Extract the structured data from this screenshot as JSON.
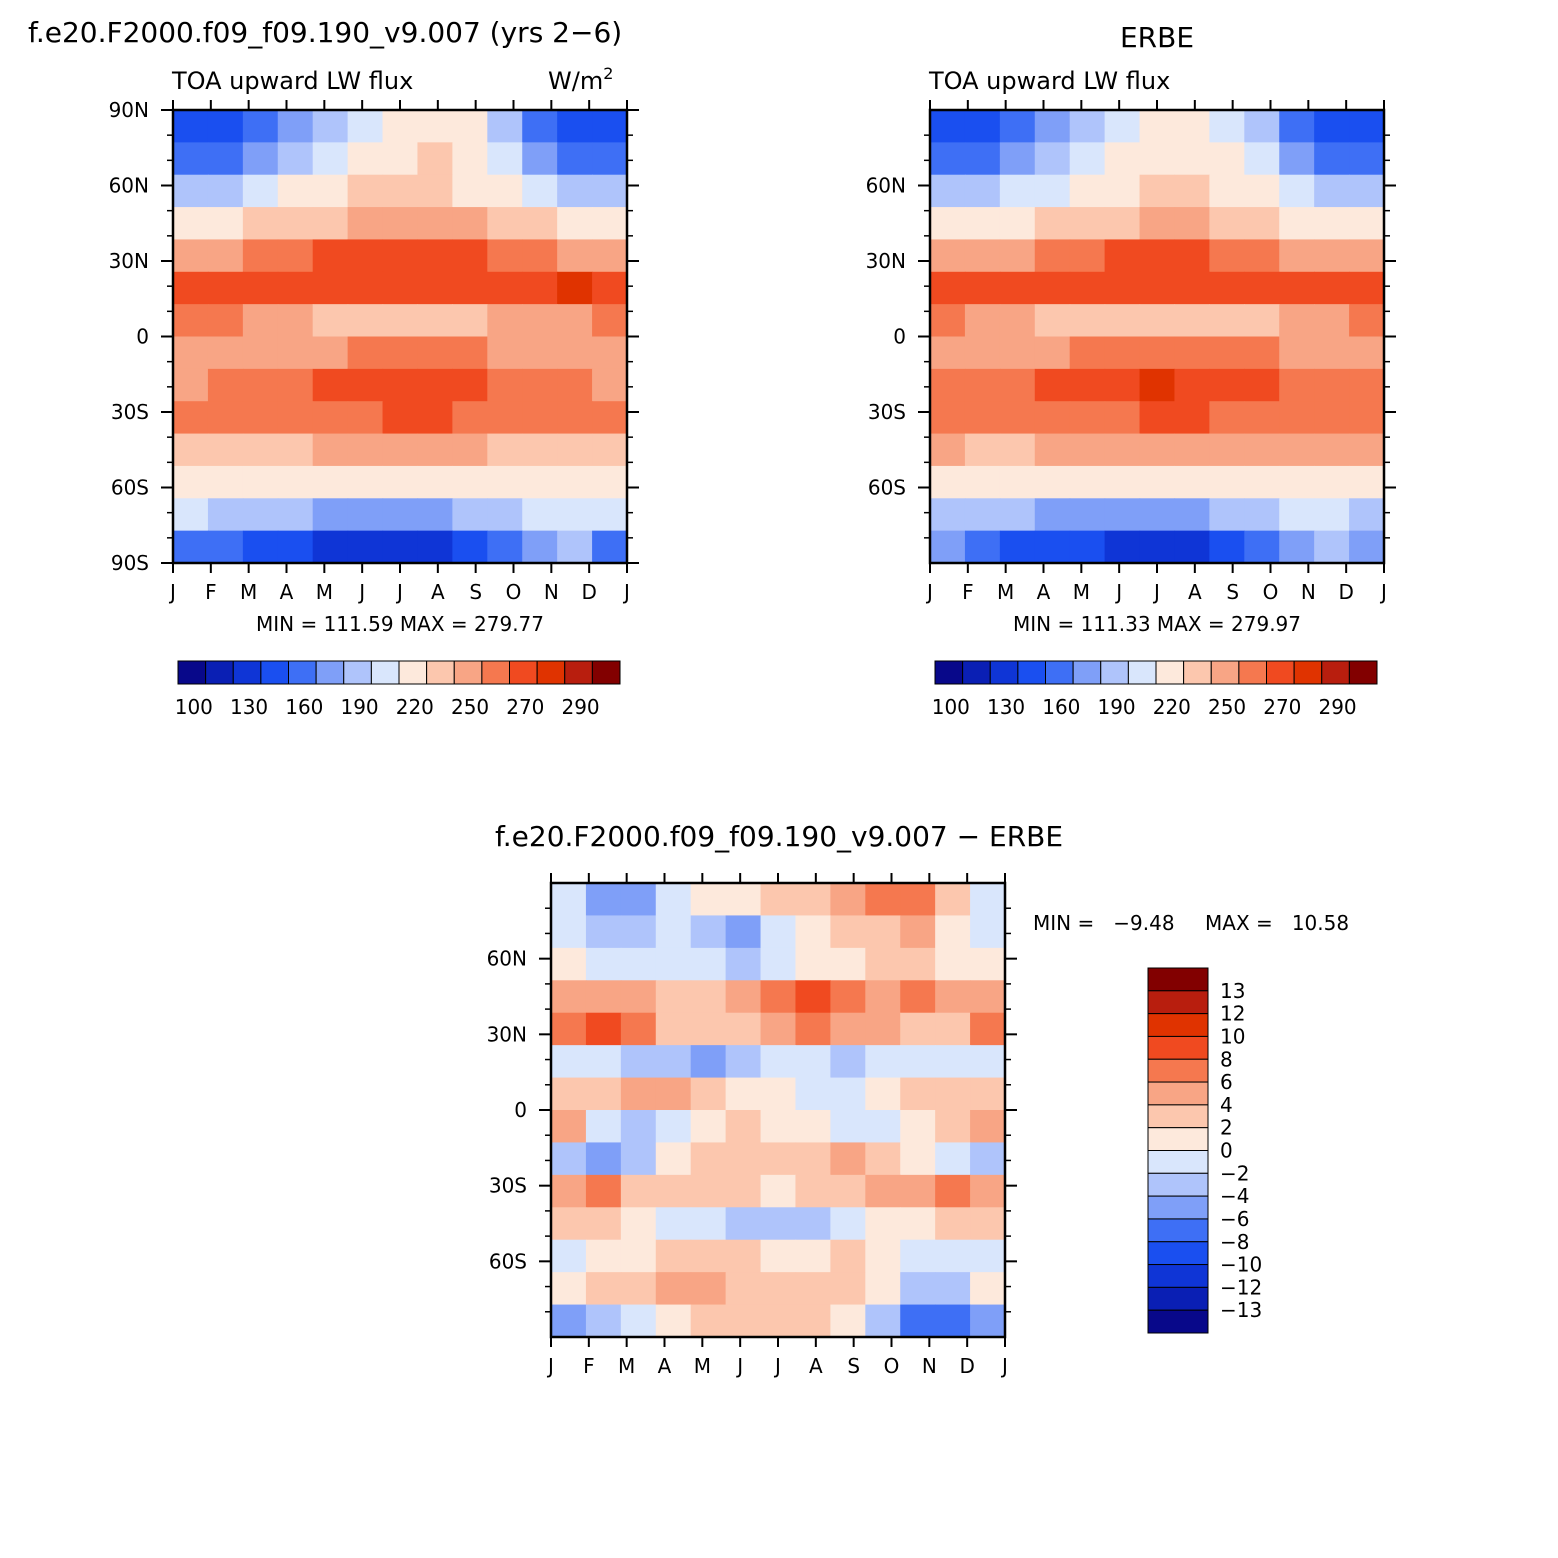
{
  "colors": {
    "abs_palette": [
      "#08088a",
      "#0a1fb4",
      "#0f35d6",
      "#1a4ff0",
      "#3e6ff5",
      "#7f9ff8",
      "#afc4fb",
      "#d9e6fc",
      "#fde9dc",
      "#fcc7ae",
      "#f8a585",
      "#f5784f",
      "#f04a20",
      "#e03300",
      "#b81e0e",
      "#820000"
    ],
    "diff_palette": [
      "#08088a",
      "#0a1fb4",
      "#0f35d6",
      "#1a4ff0",
      "#3e6ff5",
      "#7f9ff8",
      "#afc4fb",
      "#d9e6fc",
      "#fde9dc",
      "#fcc7ae",
      "#f8a585",
      "#f5784f",
      "#f04a20",
      "#e03300",
      "#b81e0e",
      "#820000"
    ]
  },
  "chart_data": [
    {
      "type": "heatmap",
      "title": "f.e20.F2000.f09_f09.190_v9.007 (yrs 2−6)",
      "subtitle": "TOA upward LW flux",
      "units": "W/m",
      "units_sup": "2",
      "x_ticks": [
        "J",
        "F",
        "M",
        "A",
        "M",
        "J",
        "J",
        "A",
        "S",
        "O",
        "N",
        "D",
        "J"
      ],
      "y_ticks": [
        "90N",
        "60N",
        "30N",
        "0",
        "30S",
        "60S",
        "90S"
      ],
      "y_range": [
        -90,
        90
      ],
      "stats": "MIN = 111.59 MAX = 279.77",
      "colorbar_labels": [
        "100",
        "130",
        "160",
        "190",
        "220",
        "250",
        "270",
        "290"
      ],
      "z": [
        [
          132,
          140,
          150,
          162,
          176,
          198,
          214,
          216,
          206,
          180,
          156,
          140,
          132
        ],
        [
          148,
          154,
          166,
          182,
          196,
          210,
          218,
          220,
          210,
          194,
          172,
          156,
          148
        ],
        [
          178,
          186,
          196,
          206,
          214,
          220,
          224,
          224,
          218,
          208,
          196,
          184,
          178
        ],
        [
          208,
          214,
          220,
          226,
          232,
          238,
          242,
          240,
          236,
          230,
          222,
          214,
          208
        ],
        [
          246,
          248,
          252,
          258,
          262,
          266,
          268,
          266,
          262,
          258,
          252,
          248,
          246
        ],
        [
          268,
          268,
          264,
          262,
          262,
          262,
          262,
          262,
          262,
          262,
          266,
          270,
          268
        ],
        [
          254,
          250,
          244,
          236,
          230,
          226,
          226,
          228,
          232,
          236,
          240,
          246,
          254
        ],
        [
          240,
          238,
          240,
          244,
          248,
          252,
          254,
          254,
          252,
          248,
          244,
          242,
          240
        ],
        [
          248,
          250,
          254,
          258,
          262,
          266,
          268,
          266,
          264,
          258,
          254,
          250,
          248
        ],
        [
          258,
          256,
          254,
          254,
          256,
          258,
          260,
          260,
          258,
          256,
          256,
          258,
          258
        ],
        [
          234,
          232,
          232,
          234,
          236,
          238,
          238,
          238,
          236,
          234,
          234,
          234,
          234
        ],
        [
          214,
          212,
          210,
          210,
          210,
          210,
          210,
          210,
          212,
          212,
          214,
          214,
          214
        ],
        [
          190,
          186,
          180,
          176,
          172,
          170,
          170,
          172,
          178,
          186,
          196,
          202,
          190
        ],
        [
          156,
          150,
          140,
          132,
          128,
          124,
          124,
          126,
          134,
          150,
          170,
          186,
          156
        ]
      ]
    },
    {
      "type": "heatmap",
      "title": "ERBE",
      "subtitle": "TOA upward LW flux",
      "x_ticks": [
        "J",
        "F",
        "M",
        "A",
        "M",
        "J",
        "J",
        "A",
        "S",
        "O",
        "N",
        "D",
        "J"
      ],
      "y_ticks": [
        "60N",
        "30N",
        "0",
        "30S",
        "60S"
      ],
      "y_range": [
        -90,
        90
      ],
      "stats": "MIN = 111.33 MAX = 279.97",
      "colorbar_labels": [
        "100",
        "130",
        "160",
        "190",
        "220",
        "250",
        "270",
        "290"
      ],
      "z": [
        [
          138,
          144,
          152,
          164,
          178,
          196,
          212,
          214,
          204,
          182,
          158,
          142,
          138
        ],
        [
          152,
          158,
          168,
          182,
          196,
          208,
          216,
          218,
          208,
          194,
          174,
          158,
          152
        ],
        [
          182,
          188,
          196,
          204,
          212,
          218,
          222,
          222,
          216,
          206,
          194,
          186,
          182
        ],
        [
          206,
          210,
          216,
          222,
          228,
          234,
          238,
          238,
          232,
          226,
          218,
          210,
          206
        ],
        [
          240,
          242,
          246,
          252,
          256,
          260,
          262,
          262,
          258,
          252,
          246,
          242,
          240
        ],
        [
          268,
          266,
          262,
          260,
          260,
          260,
          260,
          260,
          260,
          262,
          264,
          268,
          268
        ],
        [
          250,
          246,
          240,
          234,
          228,
          224,
          224,
          226,
          230,
          234,
          238,
          244,
          250
        ],
        [
          242,
          240,
          242,
          246,
          250,
          254,
          256,
          256,
          254,
          250,
          246,
          244,
          242
        ],
        [
          250,
          252,
          256,
          260,
          264,
          268,
          270,
          268,
          264,
          260,
          256,
          252,
          250
        ],
        [
          258,
          256,
          254,
          254,
          256,
          258,
          260,
          260,
          258,
          256,
          256,
          258,
          258
        ],
        [
          236,
          234,
          234,
          236,
          238,
          240,
          240,
          240,
          238,
          236,
          236,
          236,
          236
        ],
        [
          214,
          212,
          210,
          210,
          210,
          210,
          210,
          210,
          212,
          212,
          214,
          214,
          214
        ],
        [
          188,
          184,
          178,
          174,
          170,
          168,
          168,
          170,
          176,
          184,
          194,
          200,
          188
        ],
        [
          160,
          154,
          144,
          136,
          130,
          126,
          124,
          126,
          136,
          150,
          168,
          184,
          160
        ]
      ]
    },
    {
      "type": "heatmap",
      "title": "f.e20.F2000.f09_f09.190_v9.007 − ERBE",
      "x_ticks": [
        "J",
        "F",
        "M",
        "A",
        "M",
        "J",
        "J",
        "A",
        "S",
        "O",
        "N",
        "D",
        "J"
      ],
      "y_ticks": [
        "60N",
        "30N",
        "0",
        "30S",
        "60S"
      ],
      "y_range": [
        -90,
        90
      ],
      "stats_min": "MIN =   −9.48",
      "stats_max": "MAX =   10.58",
      "colorbar_labels": [
        "13",
        "12",
        "10",
        "8",
        "6",
        "4",
        "2",
        "0",
        "−2",
        "−4",
        "−6",
        "−8",
        "−10",
        "−12",
        "−13"
      ],
      "z": [
        [
          -1,
          -5,
          -5,
          -2,
          0,
          1,
          2,
          3,
          4,
          6,
          7,
          3,
          -1
        ],
        [
          -2,
          -3,
          -4,
          -2,
          -3,
          -5,
          -2,
          1,
          2,
          3,
          5,
          1,
          -2
        ],
        [
          0,
          -1,
          -1,
          -1,
          -2,
          -3,
          -1,
          1,
          1,
          2,
          2,
          0,
          0
        ],
        [
          4,
          5,
          4,
          2,
          3,
          5,
          7,
          8,
          6,
          5,
          6,
          4,
          4
        ],
        [
          6,
          8,
          7,
          3,
          2,
          3,
          4,
          6,
          5,
          4,
          3,
          2,
          6
        ],
        [
          -2,
          -1,
          -3,
          -4,
          -6,
          -3,
          -2,
          -1,
          -3,
          -2,
          -1,
          -2,
          -2
        ],
        [
          2,
          3,
          5,
          4,
          2,
          1,
          0,
          -1,
          -1,
          1,
          2,
          3,
          2
        ],
        [
          4,
          -2,
          -3,
          -2,
          1,
          2,
          1,
          0,
          -2,
          -2,
          1,
          2,
          4
        ],
        [
          -4,
          -5,
          -3,
          1,
          2,
          3,
          3,
          2,
          4,
          2,
          1,
          -2,
          -4
        ],
        [
          5,
          6,
          3,
          2,
          3,
          2,
          1,
          2,
          3,
          4,
          5,
          6,
          5
        ],
        [
          2,
          3,
          1,
          -1,
          -2,
          -3,
          -4,
          -3,
          -2,
          0,
          1,
          2,
          2
        ],
        [
          -1,
          0,
          1,
          2,
          3,
          2,
          0,
          1,
          3,
          1,
          -1,
          -2,
          -1
        ],
        [
          1,
          2,
          3,
          4,
          4,
          3,
          2,
          2,
          3,
          1,
          -3,
          -4,
          1
        ],
        [
          -6,
          -3,
          -1,
          1,
          2,
          2,
          2,
          2,
          1,
          -3,
          -7,
          -8,
          -6
        ]
      ]
    }
  ]
}
